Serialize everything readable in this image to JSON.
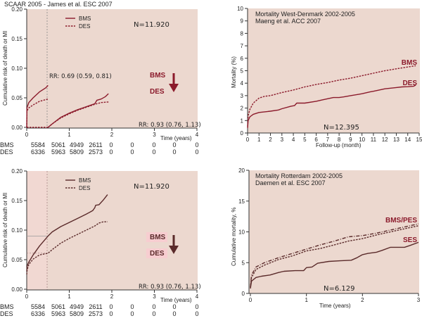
{
  "colors": {
    "panel_bg": "#ecd8cf",
    "panel_bg_pink": "#f1d8d2",
    "line_red": "#8b1a2b",
    "line_brown": "#5a2a2a",
    "axis": "#333333",
    "highlight_pink": "#f7cdd0"
  },
  "chart_data": [
    {
      "id": "scaar-landmark",
      "type": "line",
      "title": "SCAAR 2005 - James et al. ESC 2007",
      "xlabel": "Time (years)",
      "ylabel": "Cumulative risk of death or MI",
      "xlim": [
        0,
        4
      ],
      "ylim": [
        0,
        0.2
      ],
      "xticks": [
        "0",
        "1",
        "2",
        "3",
        "4"
      ],
      "yticks": [
        "0.00",
        "0.05",
        "0.10",
        "0.15",
        "0.20"
      ],
      "legend": [
        {
          "name": "BMS",
          "style": "solid"
        },
        {
          "name": "DES",
          "style": "dashed"
        }
      ],
      "legend_position": "top-left",
      "n_label": "N=11.920",
      "annotations": {
        "rr_early": "RR: 0.69 (0.59, 0.81)",
        "rr_late": "RR: 0.93 (0.76, 1.13)",
        "arrow_top": "BMS",
        "arrow_bottom": "DES"
      },
      "landmark_x": 0.5,
      "series": [
        {
          "name": "BMS",
          "style": "solid",
          "segments": [
            {
              "x": [
                0,
                0.005,
                0.05,
                0.15,
                0.3,
                0.45,
                0.5
              ],
              "y": [
                0,
                0.033,
                0.042,
                0.05,
                0.06,
                0.067,
                0.071
              ]
            },
            {
              "x": [
                0.5,
                0.6,
                0.8,
                1.0,
                1.2,
                1.4,
                1.6,
                1.65,
                1.75,
                1.85,
                1.92
              ],
              "y": [
                0,
                0.006,
                0.017,
                0.024,
                0.03,
                0.035,
                0.04,
                0.046,
                0.048,
                0.052,
                0.057
              ]
            }
          ]
        },
        {
          "name": "DES",
          "style": "dashed",
          "segments": [
            {
              "x": [
                0,
                0.005,
                0.05,
                0.15,
                0.3,
                0.5
              ],
              "y": [
                0,
                0.028,
                0.033,
                0.038,
                0.044,
                0.048
              ]
            },
            {
              "x": [
                0,
                0.5
              ],
              "y": [
                0,
                0
              ]
            },
            {
              "x": [
                0.5,
                0.6,
                0.8,
                1.0,
                1.2,
                1.4,
                1.6,
                1.75,
                1.92
              ],
              "y": [
                0,
                0.006,
                0.016,
                0.023,
                0.029,
                0.034,
                0.039,
                0.042,
                0.043
              ]
            }
          ]
        }
      ],
      "risk_table": {
        "rows": [
          {
            "label": "BMS",
            "values": [
              "5584",
              "5061",
              "4949",
              "2611",
              "0",
              "0",
              "0",
              "0",
              "0"
            ]
          },
          {
            "label": "DES",
            "values": [
              "6336",
              "5963",
              "5809",
              "2573",
              "0",
              "0",
              "0",
              "0",
              "0"
            ]
          }
        ]
      }
    },
    {
      "id": "west-denmark",
      "type": "line",
      "title": "Mortality West-Denmark 2002-2005",
      "subtitle": "Maeng et al. ACC 2007",
      "xlabel": "Follow-up (month)",
      "ylabel": "Mortality (%)",
      "xlim": [
        0,
        15
      ],
      "ylim": [
        0,
        10
      ],
      "xticks": [
        "0",
        "1",
        "2",
        "3",
        "4",
        "5",
        "6",
        "7",
        "8",
        "9",
        "10",
        "11",
        "12",
        "13",
        "14",
        "15"
      ],
      "yticks": [
        "0",
        "1",
        "2",
        "3",
        "4",
        "5",
        "6",
        "7",
        "8",
        "9",
        "10"
      ],
      "n_label": "N=12.395",
      "series": [
        {
          "name": "BMS",
          "style": "dashed",
          "x": [
            0,
            0.05,
            0.2,
            0.5,
            1.0,
            1.5,
            2,
            3,
            4,
            5,
            6,
            7,
            8,
            9,
            10,
            11,
            12,
            13,
            14,
            14.7
          ],
          "y": [
            0.5,
            1.4,
            1.9,
            2.4,
            2.8,
            2.95,
            3.0,
            3.25,
            3.45,
            3.7,
            3.9,
            4.05,
            4.25,
            4.4,
            4.6,
            4.8,
            5.0,
            5.15,
            5.3,
            5.4
          ]
        },
        {
          "name": "DES",
          "style": "solid",
          "x": [
            0,
            0.05,
            0.2,
            0.5,
            1.0,
            1.5,
            2,
            2.7,
            3,
            3.8,
            4.1,
            4.3,
            5,
            6,
            6.5,
            7,
            7.5,
            8,
            8.4,
            9,
            9.7,
            10,
            10.7,
            11,
            12,
            12.5,
            13,
            13.5,
            14,
            14.5,
            14.7
          ],
          "y": [
            0.4,
            1.0,
            1.3,
            1.5,
            1.65,
            1.7,
            1.75,
            1.85,
            1.95,
            2.15,
            2.2,
            2.4,
            2.4,
            2.55,
            2.65,
            2.75,
            2.85,
            2.85,
            2.9,
            3.0,
            3.1,
            3.15,
            3.3,
            3.35,
            3.55,
            3.6,
            3.65,
            3.7,
            3.72,
            3.75,
            3.85
          ]
        }
      ],
      "series_labels": [
        "BMS",
        "DES"
      ]
    },
    {
      "id": "scaar-full",
      "type": "line",
      "xlabel": "Time (years)",
      "ylabel": "Cumulative risk of death or MI",
      "xlim": [
        0,
        4
      ],
      "ylim": [
        0,
        0.2
      ],
      "xticks": [
        "0",
        "1",
        "2",
        "3",
        "4"
      ],
      "yticks": [
        "0.00",
        "0.05",
        "0.10",
        "0.15",
        "0.20"
      ],
      "legend": [
        {
          "name": "BMS",
          "style": "solid"
        },
        {
          "name": "DES",
          "style": "dashed"
        }
      ],
      "legend_position": "top-left",
      "n_label": "N=11.920",
      "annotations": {
        "rr": "RR: 0.93 (0.76, 1.13)",
        "arrow_top": "BMS",
        "arrow_bottom": "DES"
      },
      "landmark_x": 0.5,
      "reference_values": {
        "BMS_at_landmark": 0.09,
        "DES_at_landmark": 0.061
      },
      "series": [
        {
          "name": "BMS",
          "style": "solid",
          "x": [
            0,
            0.01,
            0.05,
            0.15,
            0.3,
            0.5,
            0.6,
            0.8,
            1.0,
            1.2,
            1.4,
            1.55,
            1.6,
            1.62,
            1.7,
            1.8,
            1.9
          ],
          "y": [
            0.03,
            0.04,
            0.046,
            0.058,
            0.073,
            0.09,
            0.097,
            0.106,
            0.113,
            0.12,
            0.127,
            0.133,
            0.138,
            0.142,
            0.143,
            0.151,
            0.16
          ]
        },
        {
          "name": "DES",
          "style": "dashed",
          "x": [
            0,
            0.01,
            0.05,
            0.15,
            0.3,
            0.5,
            0.6,
            0.8,
            1.0,
            1.2,
            1.4,
            1.6,
            1.7,
            1.8,
            1.9
          ],
          "y": [
            0.025,
            0.033,
            0.042,
            0.051,
            0.058,
            0.061,
            0.067,
            0.078,
            0.086,
            0.093,
            0.1,
            0.107,
            0.112,
            0.114,
            0.114
          ]
        }
      ],
      "risk_table": {
        "rows": [
          {
            "label": "BMS",
            "values": [
              "5584",
              "5061",
              "4949",
              "2611",
              "0",
              "0",
              "0",
              "0",
              "0"
            ]
          },
          {
            "label": "DES",
            "values": [
              "6336",
              "5963",
              "5809",
              "2573",
              "0",
              "0",
              "0",
              "0",
              "0"
            ]
          }
        ]
      }
    },
    {
      "id": "rotterdam",
      "type": "line",
      "title": "Mortality Rotterdam 2002-2005",
      "subtitle": "Daemen et al. ESC 2007",
      "xlabel": "Time (years)",
      "ylabel": "Cumulative mortality, %",
      "xlim": [
        0,
        3
      ],
      "ylim": [
        0,
        20
      ],
      "xticks": [
        "0",
        "1",
        "2",
        "3"
      ],
      "yticks": [
        "0",
        "5",
        "10",
        "15",
        "20"
      ],
      "n_label": "N=6.129",
      "series": [
        {
          "name": "BMS",
          "style": "dashdot",
          "x": [
            0,
            0.02,
            0.1,
            0.25,
            0.5,
            0.75,
            1.0,
            1.25,
            1.5,
            1.75,
            2.0,
            2.25,
            2.5,
            2.75,
            3.0
          ],
          "y": [
            1.0,
            3.0,
            4.3,
            5.0,
            5.8,
            6.5,
            7.2,
            7.9,
            8.5,
            9.2,
            9.4,
            9.8,
            10.3,
            10.8,
            11.3
          ]
        },
        {
          "name": "PES",
          "style": "dashed",
          "x": [
            0,
            0.02,
            0.1,
            0.25,
            0.5,
            0.75,
            1.0,
            1.25,
            1.5,
            1.75,
            2.0,
            2.25,
            2.5,
            2.75,
            3.0
          ],
          "y": [
            1.0,
            2.6,
            3.9,
            4.6,
            5.5,
            6.1,
            6.9,
            7.3,
            7.9,
            8.5,
            8.9,
            9.5,
            10.0,
            10.5,
            11.0
          ]
        },
        {
          "name": "SES",
          "style": "solid",
          "x": [
            0,
            0.02,
            0.1,
            0.2,
            0.35,
            0.5,
            0.6,
            0.8,
            0.95,
            1.0,
            1.1,
            1.2,
            1.4,
            1.6,
            1.8,
            1.9,
            2.0,
            2.1,
            2.25,
            2.35,
            2.5,
            2.6,
            2.75,
            2.85,
            3.0
          ],
          "y": [
            0.8,
            2.0,
            2.6,
            2.8,
            3.0,
            3.4,
            3.6,
            3.7,
            3.7,
            4.2,
            4.3,
            4.9,
            5.2,
            5.3,
            5.4,
            5.8,
            6.3,
            6.5,
            6.7,
            7.0,
            7.5,
            7.5,
            7.5,
            7.8,
            8.3
          ]
        }
      ],
      "series_labels": [
        "BMS/PES",
        "SES"
      ]
    }
  ]
}
